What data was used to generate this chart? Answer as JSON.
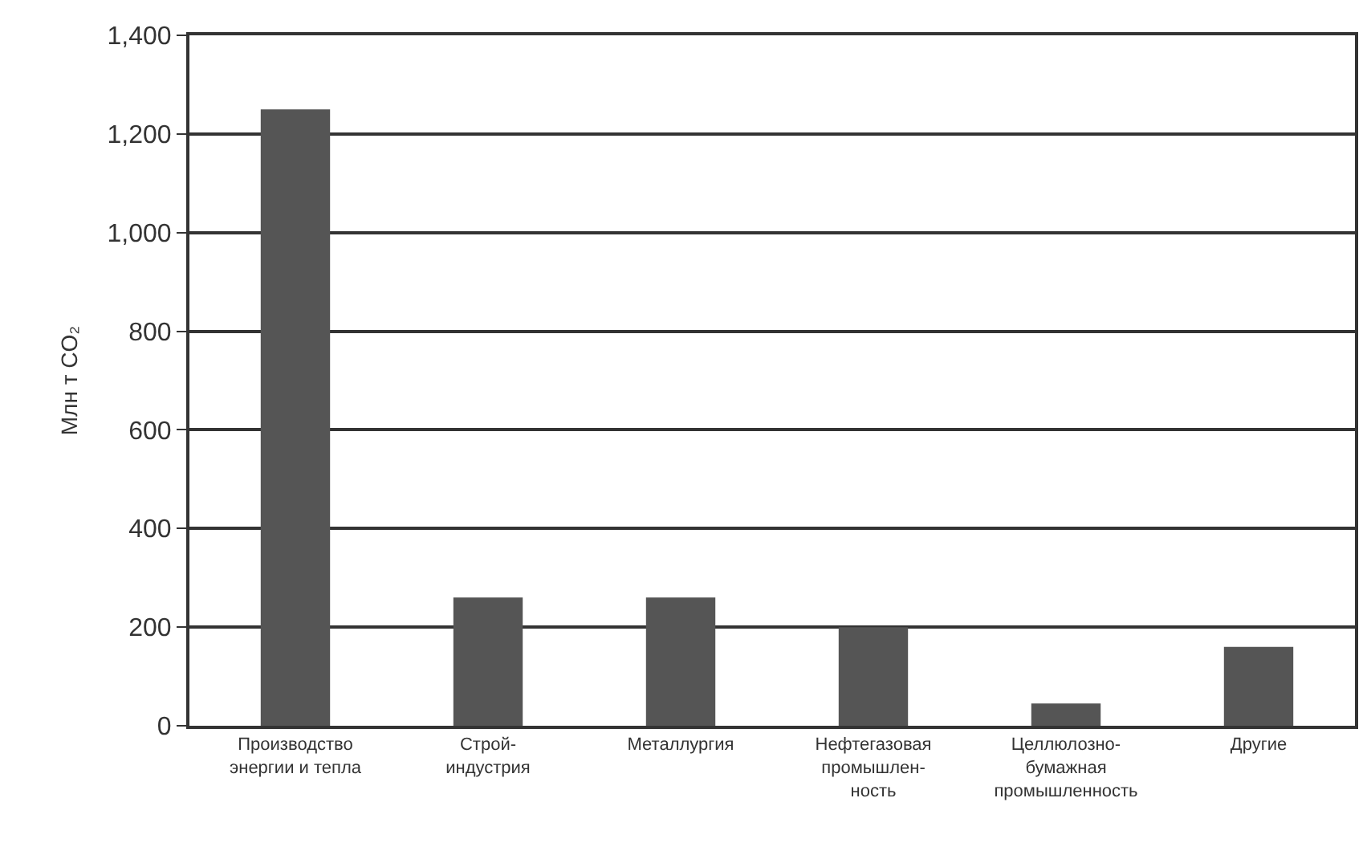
{
  "chart_data": {
    "type": "bar",
    "ylabel": "Млн т CO₂",
    "categories": [
      "Производство\nэнергии и тепла",
      "Строй-\nиндустрия",
      "Металлургия",
      "Нефтегазовая\nпромышлен-\nность",
      "Целлюлозно-\nбумажная\nпромышленность",
      "Другие"
    ],
    "values": [
      1250,
      260,
      260,
      200,
      45,
      160
    ],
    "color": "#555555",
    "ylim": [
      0,
      1400
    ],
    "yticks": [
      0,
      200,
      400,
      600,
      800,
      {
        "value": 1000,
        "label": "1,000"
      },
      {
        "value": 1200,
        "label": "1,200"
      },
      {
        "value": 1400,
        "label": "1,400"
      }
    ],
    "grid": "y",
    "legend": false
  }
}
